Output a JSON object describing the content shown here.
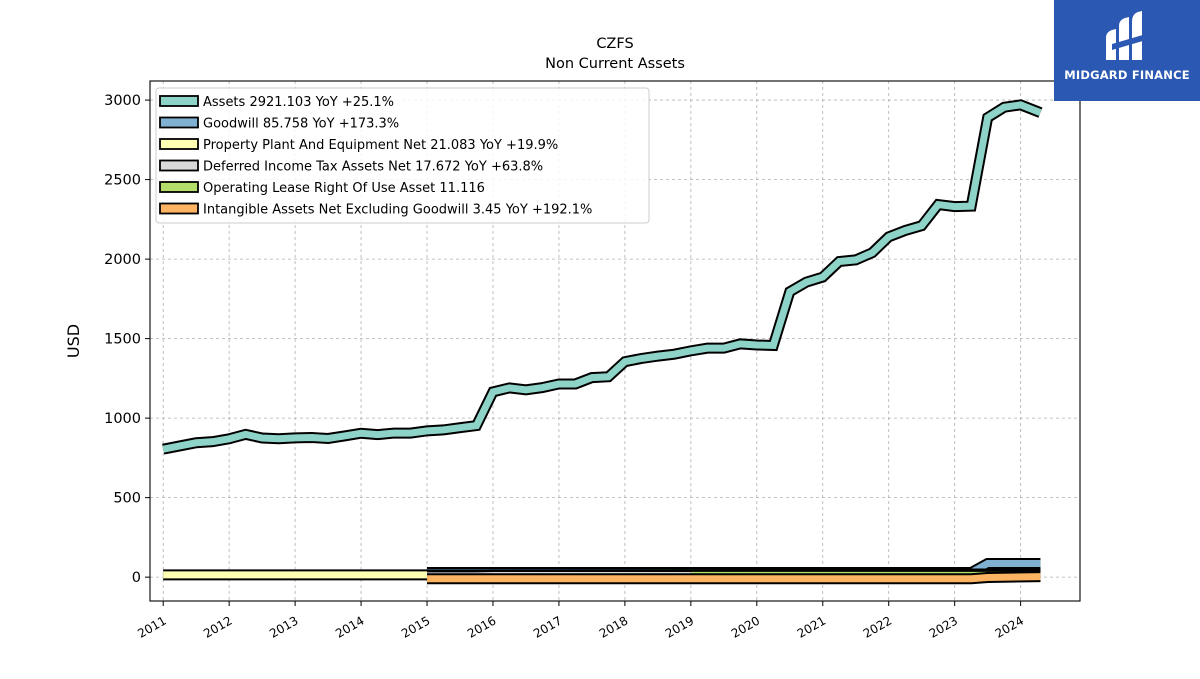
{
  "logo": {
    "text": "MIDGARD FINANCE",
    "icon": "midgard-logo-icon",
    "bg_color": "#2a58b3"
  },
  "chart_data": {
    "type": "area",
    "title": "CZFS",
    "subtitle": "Non Current  Assets",
    "xlabel": "",
    "ylabel": "USD",
    "xlim": [
      2010.8,
      2024.9
    ],
    "ylim": [
      -150,
      3120
    ],
    "x_ticks": [
      2011,
      2012,
      2013,
      2014,
      2015,
      2016,
      2017,
      2018,
      2019,
      2020,
      2021,
      2022,
      2023,
      2024
    ],
    "x_tick_labels": [
      "2011",
      "2012",
      "2013",
      "2014",
      "2015",
      "2016",
      "2017",
      "2018",
      "2019",
      "2020",
      "2021",
      "2022",
      "2023",
      "2024"
    ],
    "y_ticks": [
      0,
      500,
      1000,
      1500,
      2000,
      2500,
      3000
    ],
    "y_tick_labels": [
      "0",
      "500",
      "1000",
      "1500",
      "2000",
      "2500",
      "3000"
    ],
    "grid": true,
    "legend_position": "top-left",
    "series": [
      {
        "name": "Assets",
        "legend": "Assets  2921.103 YoY +25.1%",
        "color": "#8dd3c7",
        "x": [
          2011.0,
          2011.25,
          2011.5,
          2011.75,
          2012.0,
          2012.25,
          2012.5,
          2012.75,
          2013.0,
          2013.25,
          2013.5,
          2013.75,
          2014.0,
          2014.25,
          2014.5,
          2014.75,
          2015.0,
          2015.25,
          2015.5,
          2015.75,
          2016.0,
          2016.25,
          2016.5,
          2016.75,
          2017.0,
          2017.25,
          2017.5,
          2017.75,
          2018.0,
          2018.25,
          2018.5,
          2018.75,
          2019.0,
          2019.25,
          2019.5,
          2019.75,
          2020.0,
          2020.25,
          2020.5,
          2020.75,
          2021.0,
          2021.25,
          2021.5,
          2021.75,
          2022.0,
          2022.25,
          2022.5,
          2022.75,
          2023.0,
          2023.25,
          2023.5,
          2023.75,
          2024.0,
          2024.3
        ],
        "y": [
          805,
          825,
          845,
          852,
          870,
          898,
          875,
          870,
          876,
          878,
          872,
          888,
          905,
          896,
          906,
          906,
          920,
          926,
          940,
          953,
          1165,
          1190,
          1178,
          1192,
          1215,
          1215,
          1255,
          1260,
          1355,
          1375,
          1390,
          1402,
          1423,
          1440,
          1440,
          1467,
          1460,
          1457,
          1795,
          1855,
          1887,
          1985,
          1995,
          2040,
          2140,
          2180,
          2210,
          2343,
          2330,
          2333,
          2890,
          2955,
          2970,
          2921
        ]
      },
      {
        "name": "Goodwill",
        "legend": "Goodwill  85.758 YoY +173.3%",
        "color": "#80b1d3",
        "x": [
          2015.0,
          2023.25,
          2023.5,
          2024.3
        ],
        "y": [
          29,
          29,
          86,
          86
        ]
      },
      {
        "name": "Property Plant And Equipment Net",
        "legend": "Property Plant And Equipment Net  21.083 YoY +19.9%",
        "color": "#ffffb3",
        "x": [
          2011.0,
          2015.75,
          2016.0,
          2018.0,
          2020.25,
          2020.5,
          2023.5,
          2024.3
        ],
        "y": [
          14,
          14,
          15,
          16,
          17,
          19,
          20,
          21
        ]
      },
      {
        "name": "Deferred Income Tax Assets Net",
        "legend": "Deferred Income Tax Assets Net  17.672 YoY +63.8%",
        "color": "#d9d9d9",
        "x": [
          2015.0,
          2015.75,
          2016.0,
          2020.25,
          2020.5,
          2023.25,
          2023.5,
          2024.3
        ],
        "y": [
          8,
          8,
          10,
          10,
          12,
          12,
          16,
          17.7
        ]
      },
      {
        "name": "Operating Lease Right Of Use Asset",
        "legend": "Operating Lease Right Of Use Asset  11.116",
        "color": "#b3de69",
        "x": [
          2019.0,
          2024.3
        ],
        "y": [
          11,
          11.1
        ]
      },
      {
        "name": "Intangible Assets Net Excluding Goodwill",
        "legend": "Intangible Assets Net Excluding Goodwill  3.45 YoY +192.1%",
        "color": "#fdb462",
        "x": [
          2015.0,
          2023.25,
          2023.5,
          2024.3
        ],
        "y": [
          -10,
          -10,
          -2,
          3.45
        ]
      }
    ]
  }
}
